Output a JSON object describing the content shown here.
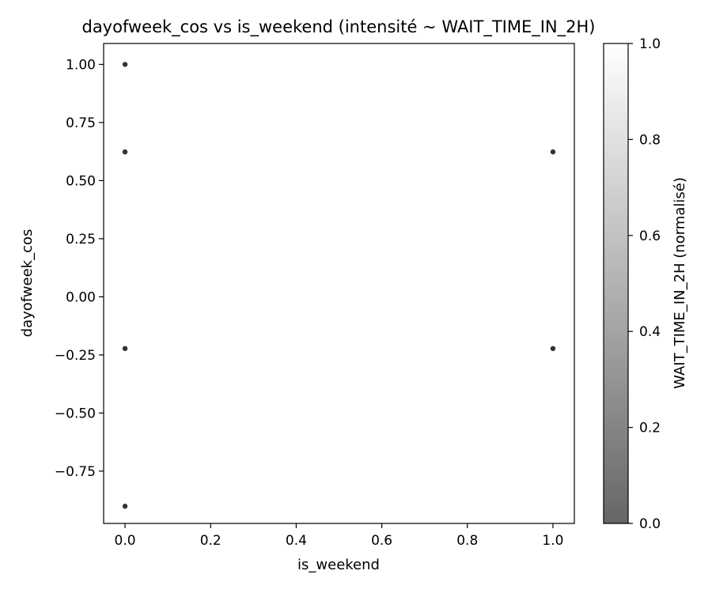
{
  "chart_data": {
    "type": "scatter",
    "title": "dayofweek_cos vs is_weekend (intensité ~ WAIT_TIME_IN_2H)",
    "xlabel": "is_weekend",
    "ylabel": "dayofweek_cos",
    "xlim": [
      -0.05,
      1.05
    ],
    "ylim": [
      -0.975,
      1.09
    ],
    "grid": false,
    "x_ticks": [
      {
        "value": 0.0,
        "label": "0.0"
      },
      {
        "value": 0.2,
        "label": "0.2"
      },
      {
        "value": 0.4,
        "label": "0.4"
      },
      {
        "value": 0.6,
        "label": "0.6"
      },
      {
        "value": 0.8,
        "label": "0.8"
      },
      {
        "value": 1.0,
        "label": "1.0"
      }
    ],
    "y_ticks": [
      {
        "value": 1.0,
        "label": "1.00"
      },
      {
        "value": 0.75,
        "label": "0.75"
      },
      {
        "value": 0.5,
        "label": "0.50"
      },
      {
        "value": 0.25,
        "label": "0.25"
      },
      {
        "value": 0.0,
        "label": "0.00"
      },
      {
        "value": -0.25,
        "label": "−0.25"
      },
      {
        "value": -0.5,
        "label": "−0.50"
      },
      {
        "value": -0.75,
        "label": "−0.75"
      }
    ],
    "points": [
      {
        "x": 0,
        "y": 1.0
      },
      {
        "x": 0,
        "y": 0.6235
      },
      {
        "x": 0,
        "y": -0.2225
      },
      {
        "x": 0,
        "y": -0.901
      },
      {
        "x": 1,
        "y": 0.6235
      },
      {
        "x": 1,
        "y": -0.2225
      }
    ],
    "point_color": "#333333",
    "colorbar": {
      "label": "WAIT_TIME_IN_2H (normalisé)",
      "range": [
        0.0,
        1.0
      ],
      "color_low": "#666666",
      "color_high": "#ffffff",
      "ticks": [
        {
          "value": 0.0,
          "label": "0.0"
        },
        {
          "value": 0.2,
          "label": "0.2"
        },
        {
          "value": 0.4,
          "label": "0.4"
        },
        {
          "value": 0.6,
          "label": "0.6"
        },
        {
          "value": 0.8,
          "label": "0.8"
        },
        {
          "value": 1.0,
          "label": "1.0"
        }
      ]
    }
  }
}
